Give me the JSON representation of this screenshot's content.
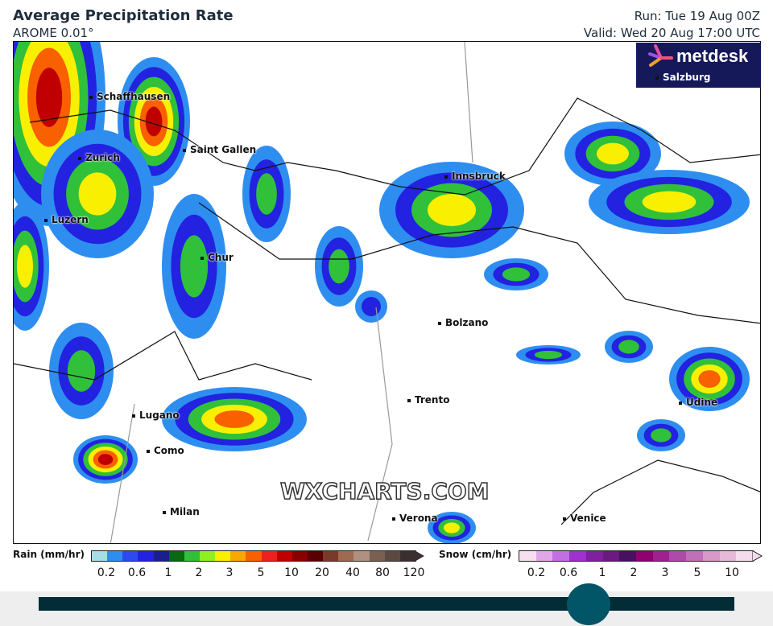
{
  "header": {
    "title": "Average Precipitation Rate",
    "model": "AROME 0.01°",
    "run": "Run: Tue 19 Aug 00Z",
    "valid": "Valid: Wed 20 Aug 17:00 UTC"
  },
  "logo": {
    "brand": "metdesk"
  },
  "watermark": "WXCHARTS.COM",
  "cities": [
    "Schaffhausen",
    "Zurich",
    "Saint Gallen",
    "Luzern",
    "Chur",
    "Innsbruck",
    "Salzburg",
    "Bolzano",
    "Trento",
    "Udine",
    "Lugano",
    "Como",
    "Milan",
    "Verona",
    "Venice"
  ],
  "legend": {
    "rain": {
      "label": "Rain (mm/hr)",
      "ticks": [
        "0.2",
        "0.6",
        "1",
        "2",
        "3",
        "5",
        "10",
        "20",
        "40",
        "80",
        "120"
      ],
      "colors": [
        "#a8dce6",
        "#2e8ef0",
        "#2c4af0",
        "#2222e0",
        "#1a1f8a",
        "#086b10",
        "#30c03a",
        "#8ef020",
        "#f8f000",
        "#f8a800",
        "#f86000",
        "#f02020",
        "#c00000",
        "#8a0000",
        "#5a0000",
        "#7a3a2a",
        "#a06a50",
        "#b09080",
        "#7a6050",
        "#5a4a40",
        "#3a3030"
      ]
    },
    "snow": {
      "label": "Snow (cm/hr)",
      "ticks": [
        "0.2",
        "0.6",
        "1",
        "2",
        "3",
        "5",
        "10"
      ],
      "colors": [
        "#f6e0f0",
        "#e0a8e8",
        "#c070e0",
        "#a030d0",
        "#8020a0",
        "#6a1a80",
        "#4a1060",
        "#900070",
        "#a02090",
        "#b04aa8",
        "#c070b8",
        "#d898c8",
        "#e8b8d8",
        "#f4dcec"
      ]
    }
  },
  "timeline": {
    "position": 0.79
  }
}
